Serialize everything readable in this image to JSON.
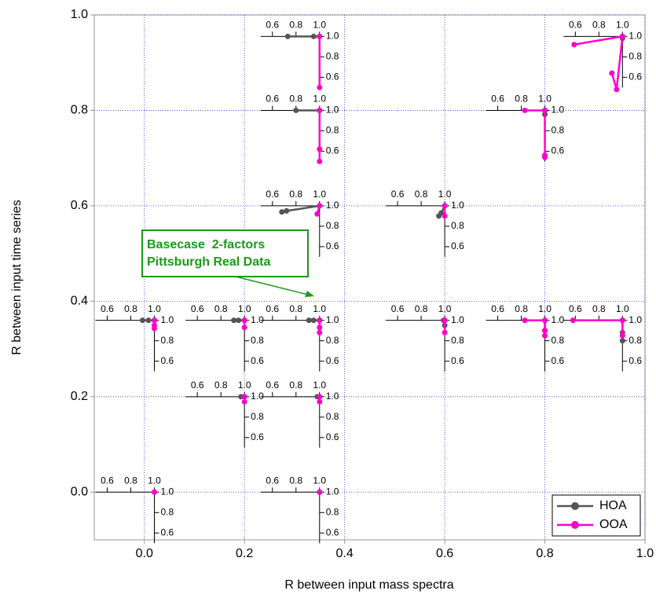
{
  "chart_data": {
    "type": "inset_scatter",
    "xlabel": "R between input mass spectra",
    "ylabel": "R between input time series",
    "xlim": [
      -0.1,
      1.0
    ],
    "ylim": [
      -0.1,
      1.0
    ],
    "xticks": [
      {
        "value": 0,
        "label": "0.0"
      },
      0.2,
      0.4,
      0.6,
      0.8,
      {
        "value": 1,
        "label": "1.0"
      }
    ],
    "yticks": [
      {
        "value": 0,
        "label": "0.0"
      },
      0.2,
      0.4,
      0.6,
      0.8,
      {
        "value": 1,
        "label": "1.0"
      }
    ],
    "grid": true,
    "inset_lim": [
      0.5,
      1.0
    ],
    "inset_ticks": [
      0.6,
      0.8,
      {
        "value": 1,
        "label": "1.0"
      }
    ],
    "series": [
      {
        "name": "HOA",
        "color": "#555555"
      },
      {
        "name": "OOA",
        "color": "#ff00cc"
      }
    ],
    "legend": "lower right",
    "annotation": [
      "Basecase  2-factors",
      "Pittsburgh Real Data"
    ],
    "annotation_color": "#1a9a1a",
    "insets": [
      {
        "x": 0.35,
        "y": 0.955,
        "series": [
          {
            "x": [
              0.73,
              0.95,
              1.0
            ],
            "y": [
              1.0,
              1.0,
              1.0
            ]
          },
          {
            "x": [
              1.0,
              1.0
            ],
            "y": [
              1.0,
              0.5
            ]
          }
        ]
      },
      {
        "x": 0.35,
        "y": 0.8,
        "series": [
          {
            "x": [
              0.8,
              1.0
            ],
            "y": [
              1.0,
              1.0
            ]
          },
          {
            "x": [
              1.0,
              1.0,
              1.0
            ],
            "y": [
              1.0,
              0.62,
              0.5
            ]
          }
        ]
      },
      {
        "x": 0.35,
        "y": 0.6,
        "series": [
          {
            "x": [
              0.68,
              0.72,
              1.0
            ],
            "y": [
              0.94,
              0.95,
              1.0
            ]
          },
          {
            "x": [
              1.0,
              0.98
            ],
            "y": [
              1.0,
              0.92
            ]
          }
        ]
      },
      {
        "x": 0.6,
        "y": 0.6,
        "series": [
          {
            "x": [
              0.95,
              0.97,
              1.0
            ],
            "y": [
              0.9,
              0.93,
              1.0
            ]
          },
          {
            "x": [
              1.0,
              1.0
            ],
            "y": [
              1.0,
              0.9
            ]
          }
        ]
      },
      {
        "x": 0.02,
        "y": 0.36,
        "series": [
          {
            "x": [
              0.9,
              0.95,
              1.0
            ],
            "y": [
              1.0,
              1.0,
              1.0
            ]
          },
          {
            "x": [
              1.0,
              1.0,
              1.0
            ],
            "y": [
              1.0,
              0.95,
              0.92
            ]
          }
        ]
      },
      {
        "x": 0.2,
        "y": 0.36,
        "series": [
          {
            "x": [
              0.91,
              0.95,
              1.0
            ],
            "y": [
              1.0,
              1.0,
              1.0
            ]
          },
          {
            "x": [
              1.0,
              1.0
            ],
            "y": [
              1.0,
              0.93
            ]
          }
        ]
      },
      {
        "x": 0.35,
        "y": 0.36,
        "series": [
          {
            "x": [
              0.91,
              0.95,
              1.0
            ],
            "y": [
              1.0,
              1.0,
              1.0
            ]
          },
          {
            "x": [
              1.0,
              1.0,
              1.0
            ],
            "y": [
              1.0,
              0.93,
              0.88
            ]
          }
        ]
      },
      {
        "x": 0.6,
        "y": 0.36,
        "series": [
          {
            "x": [
              0.99,
              1.0
            ],
            "y": [
              1.0,
              0.95
            ]
          },
          {
            "x": [
              1.0,
              1.0
            ],
            "y": [
              1.0,
              0.88
            ]
          }
        ]
      },
      {
        "x": 0.8,
        "y": 0.36,
        "series": [
          {
            "x": [
              1.0,
              1.0
            ],
            "y": [
              1.0,
              0.9
            ]
          },
          {
            "x": [
              0.83,
              1.0,
              1.0,
              1.0
            ],
            "y": [
              1.0,
              1.0,
              0.9,
              0.85
            ]
          }
        ]
      },
      {
        "x": 0.955,
        "y": 0.36,
        "series": [
          {
            "x": [
              1.0,
              1.0,
              1.0
            ],
            "y": [
              1.0,
              0.88,
              0.8
            ]
          },
          {
            "x": [
              0.58,
              1.0,
              1.0
            ],
            "y": [
              1.0,
              1.0,
              0.85
            ]
          }
        ]
      },
      {
        "x": 0.2,
        "y": 0.2,
        "series": [
          {
            "x": [
              0.97,
              1.0
            ],
            "y": [
              1.0,
              1.0
            ]
          },
          {
            "x": [
              1.0,
              1.0
            ],
            "y": [
              1.0,
              0.95
            ]
          }
        ]
      },
      {
        "x": 0.35,
        "y": 0.2,
        "series": [
          {
            "x": [
              0.98,
              1.0
            ],
            "y": [
              1.0,
              1.0
            ]
          },
          {
            "x": [
              1.0,
              1.0
            ],
            "y": [
              1.0,
              0.95
            ]
          }
        ]
      },
      {
        "x": 0.02,
        "y": 0.0,
        "series": [
          {
            "x": [
              1.0
            ],
            "y": [
              1.0
            ]
          },
          {
            "x": [
              1.0
            ],
            "y": [
              1.0
            ]
          }
        ]
      },
      {
        "x": 0.35,
        "y": 0.0,
        "series": [
          {
            "x": [
              1.0
            ],
            "y": [
              1.0
            ]
          },
          {
            "x": [
              1.0
            ],
            "y": [
              1.0
            ]
          }
        ]
      },
      {
        "x": 0.8,
        "y": 0.8,
        "series": [
          {
            "x": [
              1.0,
              1.0
            ],
            "y": [
              1.0,
              0.96
            ]
          },
          {
            "x": [
              0.83,
              1.0,
              1.0,
              1.0
            ],
            "y": [
              1.0,
              1.0,
              0.54,
              0.56
            ]
          }
        ]
      },
      {
        "x": 0.955,
        "y": 0.955,
        "series": [
          {
            "x": [
              1.0,
              1.0
            ],
            "y": [
              1.0,
              0.98
            ]
          },
          {
            "x": [
              0.59,
              1.0,
              0.95,
              0.91
            ],
            "y": [
              0.92,
              1.0,
              0.48,
              0.64
            ]
          }
        ]
      }
    ]
  }
}
